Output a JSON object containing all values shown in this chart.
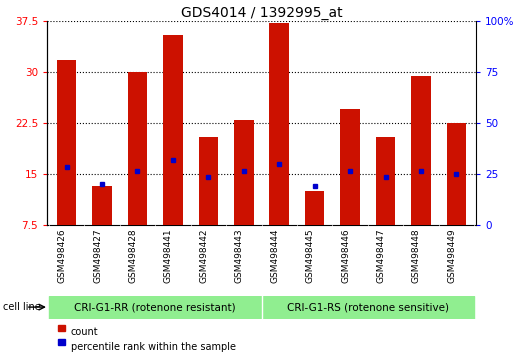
{
  "title": "GDS4014 / 1392995_at",
  "samples": [
    "GSM498426",
    "GSM498427",
    "GSM498428",
    "GSM498441",
    "GSM498442",
    "GSM498443",
    "GSM498444",
    "GSM498445",
    "GSM498446",
    "GSM498447",
    "GSM498448",
    "GSM498449"
  ],
  "count_values": [
    31.8,
    13.2,
    30.0,
    35.5,
    20.5,
    23.0,
    37.2,
    12.5,
    24.5,
    20.5,
    29.5,
    22.5
  ],
  "percentile_values": [
    16.0,
    13.5,
    15.5,
    17.0,
    14.5,
    15.5,
    16.5,
    13.2,
    15.5,
    14.5,
    15.5,
    15.0
  ],
  "groups": [
    {
      "label": "CRI-G1-RR (rotenone resistant)",
      "start": 0,
      "end": 6,
      "color": "#90EE90"
    },
    {
      "label": "CRI-G1-RS (rotenone sensitive)",
      "start": 6,
      "end": 12,
      "color": "#90EE90"
    }
  ],
  "ylim_left": [
    7.5,
    37.5
  ],
  "ylim_right": [
    0,
    100
  ],
  "yticks_left": [
    7.5,
    15.0,
    22.5,
    30.0,
    37.5
  ],
  "yticks_right": [
    0,
    25,
    50,
    75,
    100
  ],
  "bar_color": "#CC1100",
  "percentile_color": "#0000CC",
  "grid_color": "black",
  "bar_width": 0.55,
  "cell_line_label": "cell line",
  "legend_count": "count",
  "legend_percentile": "percentile rank within the sample",
  "title_fontsize": 10,
  "label_fontsize": 8,
  "tick_label_fontsize": 7.5,
  "sample_label_fontsize": 6.5,
  "group_label_fontsize": 7.5,
  "xlim": [
    -0.55,
    11.55
  ],
  "gray_band_color": "#D8D8D8",
  "green_band_color": "#80DD80",
  "white": "#FFFFFF"
}
